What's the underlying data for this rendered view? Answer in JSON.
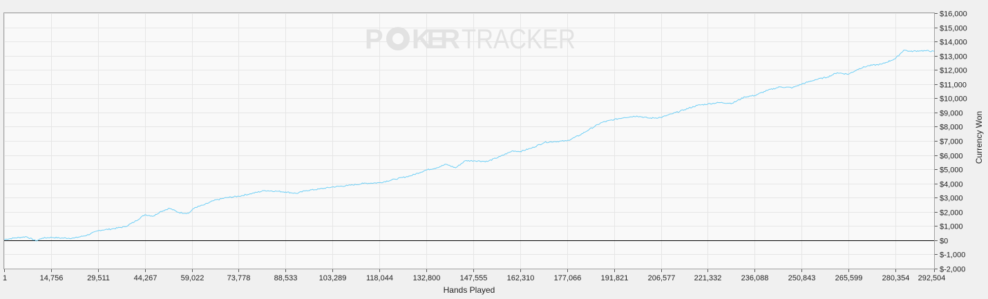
{
  "colors": {
    "line": "#6ecff6",
    "zero_line": "#000000",
    "grid": "#e6e6e6",
    "plot_bg": "#f9f9f9",
    "frame": "#a0a0a0",
    "watermark": "#e2e2e2"
  },
  "watermark": {
    "brand_left": "P",
    "brand_mid": "KER",
    "brand_right": "TRACKER",
    "icon": "poker-chip-icon"
  },
  "chart_data": {
    "type": "line",
    "xlabel": "Hands Played",
    "ylabel": "Currency Won",
    "xlim": [
      1,
      292504
    ],
    "ylim": [
      -2000,
      16000
    ],
    "grid": true,
    "x_ticks": [
      1,
      14756,
      29511,
      44267,
      59022,
      73778,
      88533,
      103289,
      118044,
      132800,
      147555,
      162310,
      177066,
      191821,
      206577,
      221332,
      236088,
      250843,
      265599,
      280354,
      292504
    ],
    "x_tick_labels": [
      "1",
      "14,756",
      "29,511",
      "44,267",
      "59,022",
      "73,778",
      "88,533",
      "103,289",
      "118,044",
      "132,800",
      "147,555",
      "162,310",
      "177,066",
      "191,821",
      "206,577",
      "221,332",
      "236,088",
      "250,843",
      "265,599",
      "280,354",
      "292,504"
    ],
    "y_ticks": [
      16000,
      15000,
      14000,
      13000,
      12000,
      11000,
      10000,
      9000,
      8000,
      7000,
      6000,
      5000,
      4000,
      3000,
      2000,
      1000,
      0,
      -1000,
      -2000
    ],
    "y_tick_labels": [
      "$16,000",
      "$15,000",
      "$14,000",
      "$13,000",
      "$12,000",
      "$11,000",
      "$10,000",
      "$9,000",
      "$8,000",
      "$7,000",
      "$6,000",
      "$5,000",
      "$4,000",
      "$3,000",
      "$2,000",
      "$1,000",
      "$0",
      "$-1,000",
      "$-2,000"
    ],
    "series": [
      {
        "x": [
          1,
          3000,
          7000,
          10000,
          12000,
          15000,
          18000,
          22000,
          26000,
          30000,
          34000,
          38000,
          41000,
          44267,
          47000,
          49000,
          52000,
          55000,
          58000,
          60000,
          63000,
          66000,
          70000,
          73778,
          78000,
          82000,
          86000,
          88533,
          92000,
          95000,
          99000,
          103289,
          108000,
          113000,
          118044,
          123000,
          128000,
          132800,
          136000,
          139000,
          142000,
          145000,
          148000,
          152000,
          156000,
          160000,
          162310,
          166000,
          170000,
          173000,
          177066,
          181000,
          184000,
          188000,
          191821,
          195000,
          199000,
          203000,
          206577,
          210000,
          214000,
          218000,
          221332,
          225000,
          229000,
          233000,
          236088,
          240000,
          244000,
          248000,
          250843,
          255000,
          259000,
          262000,
          265599,
          269000,
          272000,
          276000,
          280354,
          283000,
          285000,
          288000,
          290000,
          292504
        ],
        "values": [
          50,
          150,
          250,
          -50,
          150,
          200,
          150,
          150,
          350,
          700,
          800,
          950,
          1300,
          1800,
          1700,
          2000,
          2250,
          1950,
          1900,
          2300,
          2500,
          2800,
          3000,
          3100,
          3300,
          3500,
          3450,
          3400,
          3300,
          3500,
          3600,
          3750,
          3850,
          4000,
          4050,
          4300,
          4550,
          4950,
          5100,
          5350,
          5100,
          5600,
          5600,
          5550,
          5900,
          6300,
          6250,
          6500,
          6900,
          6950,
          7000,
          7400,
          7800,
          8300,
          8500,
          8650,
          8750,
          8600,
          8650,
          8900,
          9200,
          9500,
          9600,
          9700,
          9650,
          10100,
          10200,
          10550,
          10800,
          10750,
          11000,
          11300,
          11500,
          11800,
          11700,
          12100,
          12300,
          12400,
          12800,
          13400,
          13300,
          13350,
          13350,
          13300
        ]
      }
    ]
  }
}
